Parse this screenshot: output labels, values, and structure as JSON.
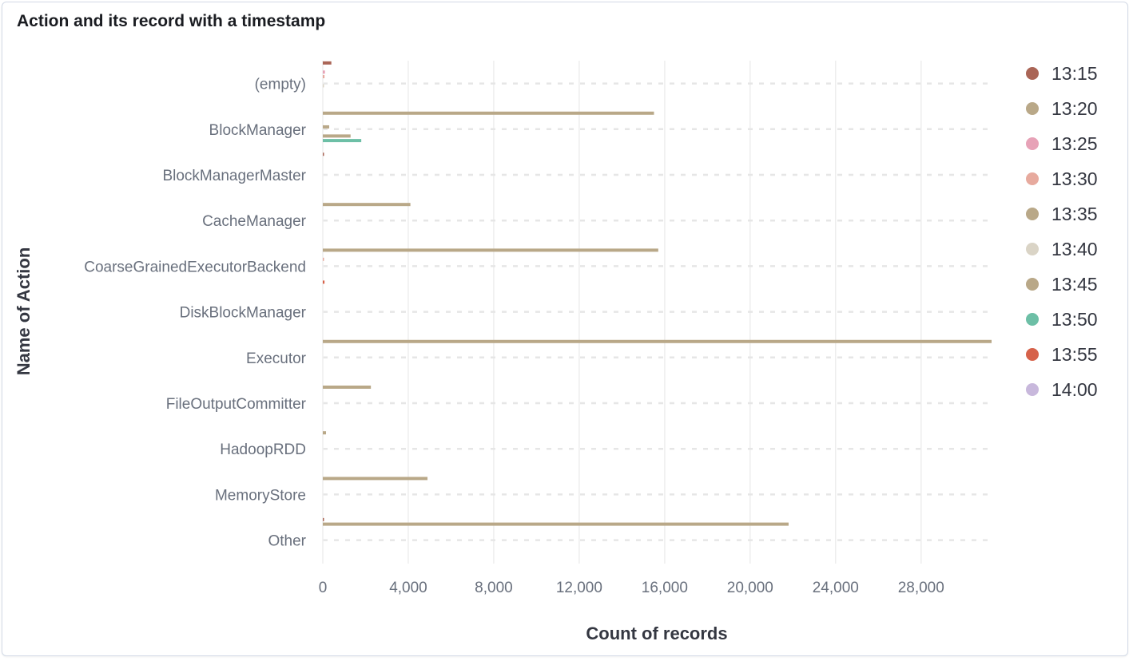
{
  "panel": {
    "title": "Action and its record with a timestamp"
  },
  "chart_data": {
    "type": "bar",
    "orientation": "horizontal",
    "title": "Action and its record with a timestamp",
    "xlabel": "Count of records",
    "ylabel": "Name of Action",
    "xlim": [
      0,
      31300
    ],
    "xticks": [
      0,
      4000,
      8000,
      12000,
      16000,
      20000,
      24000,
      28000
    ],
    "xtick_labels": [
      "0",
      "4,000",
      "8,000",
      "12,000",
      "16,000",
      "20,000",
      "24,000",
      "28,000"
    ],
    "grid": true,
    "legend_position": "right",
    "categories": [
      "(empty)",
      "BlockManager",
      "BlockManagerMaster",
      "CacheManager",
      "CoarseGrainedExecutorBackend",
      "DiskBlockManager",
      "Executor",
      "FileOutputCommitter",
      "HadoopRDD",
      "MemoryStore",
      "Other"
    ],
    "series": [
      {
        "name": "13:15",
        "color": "#aa6556",
        "values": [
          400,
          0,
          30,
          0,
          0,
          0,
          0,
          0,
          0,
          0,
          50
        ]
      },
      {
        "name": "13:20",
        "color": "#b9a888",
        "values": [
          0,
          15500,
          0,
          4100,
          15700,
          0,
          31300,
          2250,
          150,
          4900,
          21800
        ]
      },
      {
        "name": "13:25",
        "color": "#e7a2b7",
        "values": [
          100,
          0,
          0,
          0,
          0,
          0,
          0,
          0,
          0,
          0,
          0
        ]
      },
      {
        "name": "13:30",
        "color": "#e7aa9e",
        "values": [
          80,
          0,
          0,
          0,
          30,
          0,
          0,
          0,
          0,
          0,
          0
        ]
      },
      {
        "name": "13:35",
        "color": "#b9a888",
        "values": [
          0,
          300,
          0,
          0,
          0,
          0,
          0,
          0,
          0,
          0,
          0
        ]
      },
      {
        "name": "13:40",
        "color": "#dad4c6",
        "values": [
          50,
          0,
          0,
          0,
          0,
          0,
          0,
          0,
          0,
          0,
          0
        ]
      },
      {
        "name": "13:45",
        "color": "#b9a888",
        "values": [
          0,
          1300,
          0,
          0,
          0,
          0,
          0,
          0,
          0,
          0,
          0
        ]
      },
      {
        "name": "13:50",
        "color": "#6dbfa6",
        "values": [
          0,
          1800,
          0,
          0,
          0,
          0,
          0,
          0,
          0,
          0,
          0
        ]
      },
      {
        "name": "13:55",
        "color": "#d6624a",
        "values": [
          0,
          0,
          0,
          0,
          80,
          0,
          0,
          0,
          0,
          0,
          0
        ]
      },
      {
        "name": "14:00",
        "color": "#c8b8dc",
        "values": [
          0,
          0,
          0,
          0,
          0,
          0,
          0,
          0,
          0,
          0,
          0
        ]
      }
    ]
  }
}
